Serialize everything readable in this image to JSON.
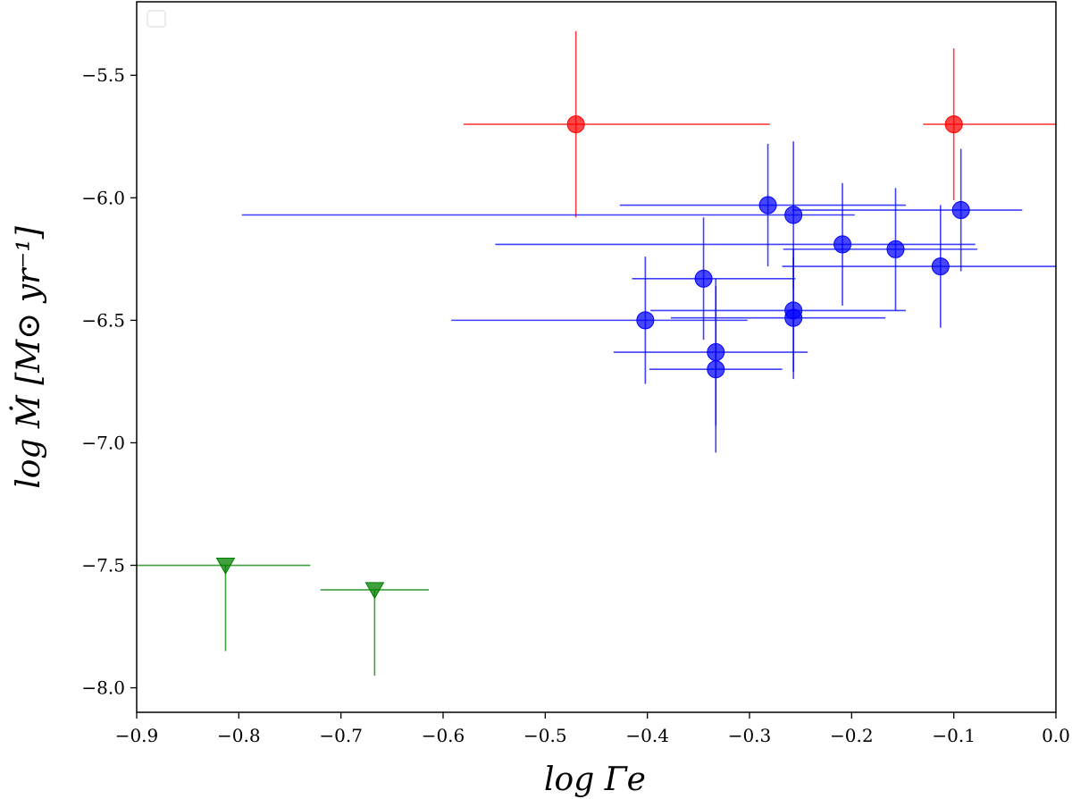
{
  "chart_data": {
    "type": "scatter",
    "xlabel": "log Γe",
    "ylabel": "log Ṁ [M⊙ yr⁻¹]",
    "xlim": [
      -0.9,
      0.0
    ],
    "ylim": [
      -8.1,
      -5.2
    ],
    "xticks": [
      -0.9,
      -0.8,
      -0.7,
      -0.6,
      -0.5,
      -0.4,
      -0.3,
      -0.2,
      -0.1,
      0.0
    ],
    "xtick_labels": [
      "−0.9",
      "−0.8",
      "−0.7",
      "−0.6",
      "−0.5",
      "−0.4",
      "−0.3",
      "−0.2",
      "−0.1",
      "0.0"
    ],
    "yticks": [
      -8.0,
      -7.5,
      -7.0,
      -6.5,
      -6.0,
      -5.5
    ],
    "ytick_labels": [
      "−8.0",
      "−7.5",
      "−7.0",
      "−6.5",
      "−6.0",
      "−5.5"
    ],
    "legend": "top-left (empty)",
    "grid": false,
    "series": [
      {
        "color": "#ff0000",
        "marker": "circle",
        "points": [
          {
            "x": -0.47,
            "y": -5.7,
            "xerr": [
              0.11,
              0.19
            ],
            "yerr": [
              0.38,
              0.38
            ]
          },
          {
            "x": -0.1,
            "y": -5.7,
            "xerr": [
              0.03,
              0.12
            ],
            "yerr": [
              0.31,
              0.31
            ]
          }
        ]
      },
      {
        "color": "#0000ff",
        "marker": "circle",
        "points": [
          {
            "x": -0.282,
            "y": -6.03,
            "xerr": [
              0.145,
              0.135
            ],
            "yerr": [
              0.25,
              0.25
            ]
          },
          {
            "x": -0.257,
            "y": -6.07,
            "xerr": [
              0.54,
              0.06
            ],
            "yerr": [
              0.3,
              0.3
            ]
          },
          {
            "x": -0.093,
            "y": -6.05,
            "xerr": [
              0.165,
              0.06
            ],
            "yerr": [
              0.25,
              0.25
            ]
          },
          {
            "x": -0.209,
            "y": -6.19,
            "xerr": [
              0.34,
              0.13
            ],
            "yerr": [
              0.25,
              0.25
            ]
          },
          {
            "x": -0.157,
            "y": -6.21,
            "xerr": [
              0.11,
              0.08
            ],
            "yerr": [
              0.25,
              0.25
            ]
          },
          {
            "x": -0.113,
            "y": -6.28,
            "xerr": [
              0.155,
              0.12
            ],
            "yerr": [
              0.25,
              0.25
            ]
          },
          {
            "x": -0.345,
            "y": -6.33,
            "xerr": [
              0.07,
              0.09
            ],
            "yerr": [
              0.25,
              0.25
            ]
          },
          {
            "x": -0.402,
            "y": -6.5,
            "xerr": [
              0.19,
              0.1
            ],
            "yerr": [
              0.26,
              0.26
            ]
          },
          {
            "x": -0.257,
            "y": -6.46,
            "xerr": [
              0.14,
              0.11
            ],
            "yerr": [
              0.25,
              0.25
            ]
          },
          {
            "x": -0.257,
            "y": -6.49,
            "xerr": [
              0.12,
              0.09
            ],
            "yerr": [
              0.25,
              0.25
            ]
          },
          {
            "x": -0.333,
            "y": -6.63,
            "xerr": [
              0.1,
              0.09
            ],
            "yerr": [
              0.3,
              0.3
            ]
          },
          {
            "x": -0.333,
            "y": -6.7,
            "xerr": [
              0.065,
              0.065
            ],
            "yerr": [
              0.34,
              0.34
            ]
          }
        ]
      },
      {
        "color": "#008000",
        "marker": "triangle-down",
        "points": [
          {
            "x": -0.813,
            "y": -7.5,
            "xerr": [
              0.087,
              0.083
            ],
            "yerr": [
              0.35,
              0.0
            ]
          },
          {
            "x": -0.667,
            "y": -7.6,
            "xerr": [
              0.053,
              0.053
            ],
            "yerr": [
              0.35,
              0.0
            ]
          }
        ]
      }
    ]
  }
}
